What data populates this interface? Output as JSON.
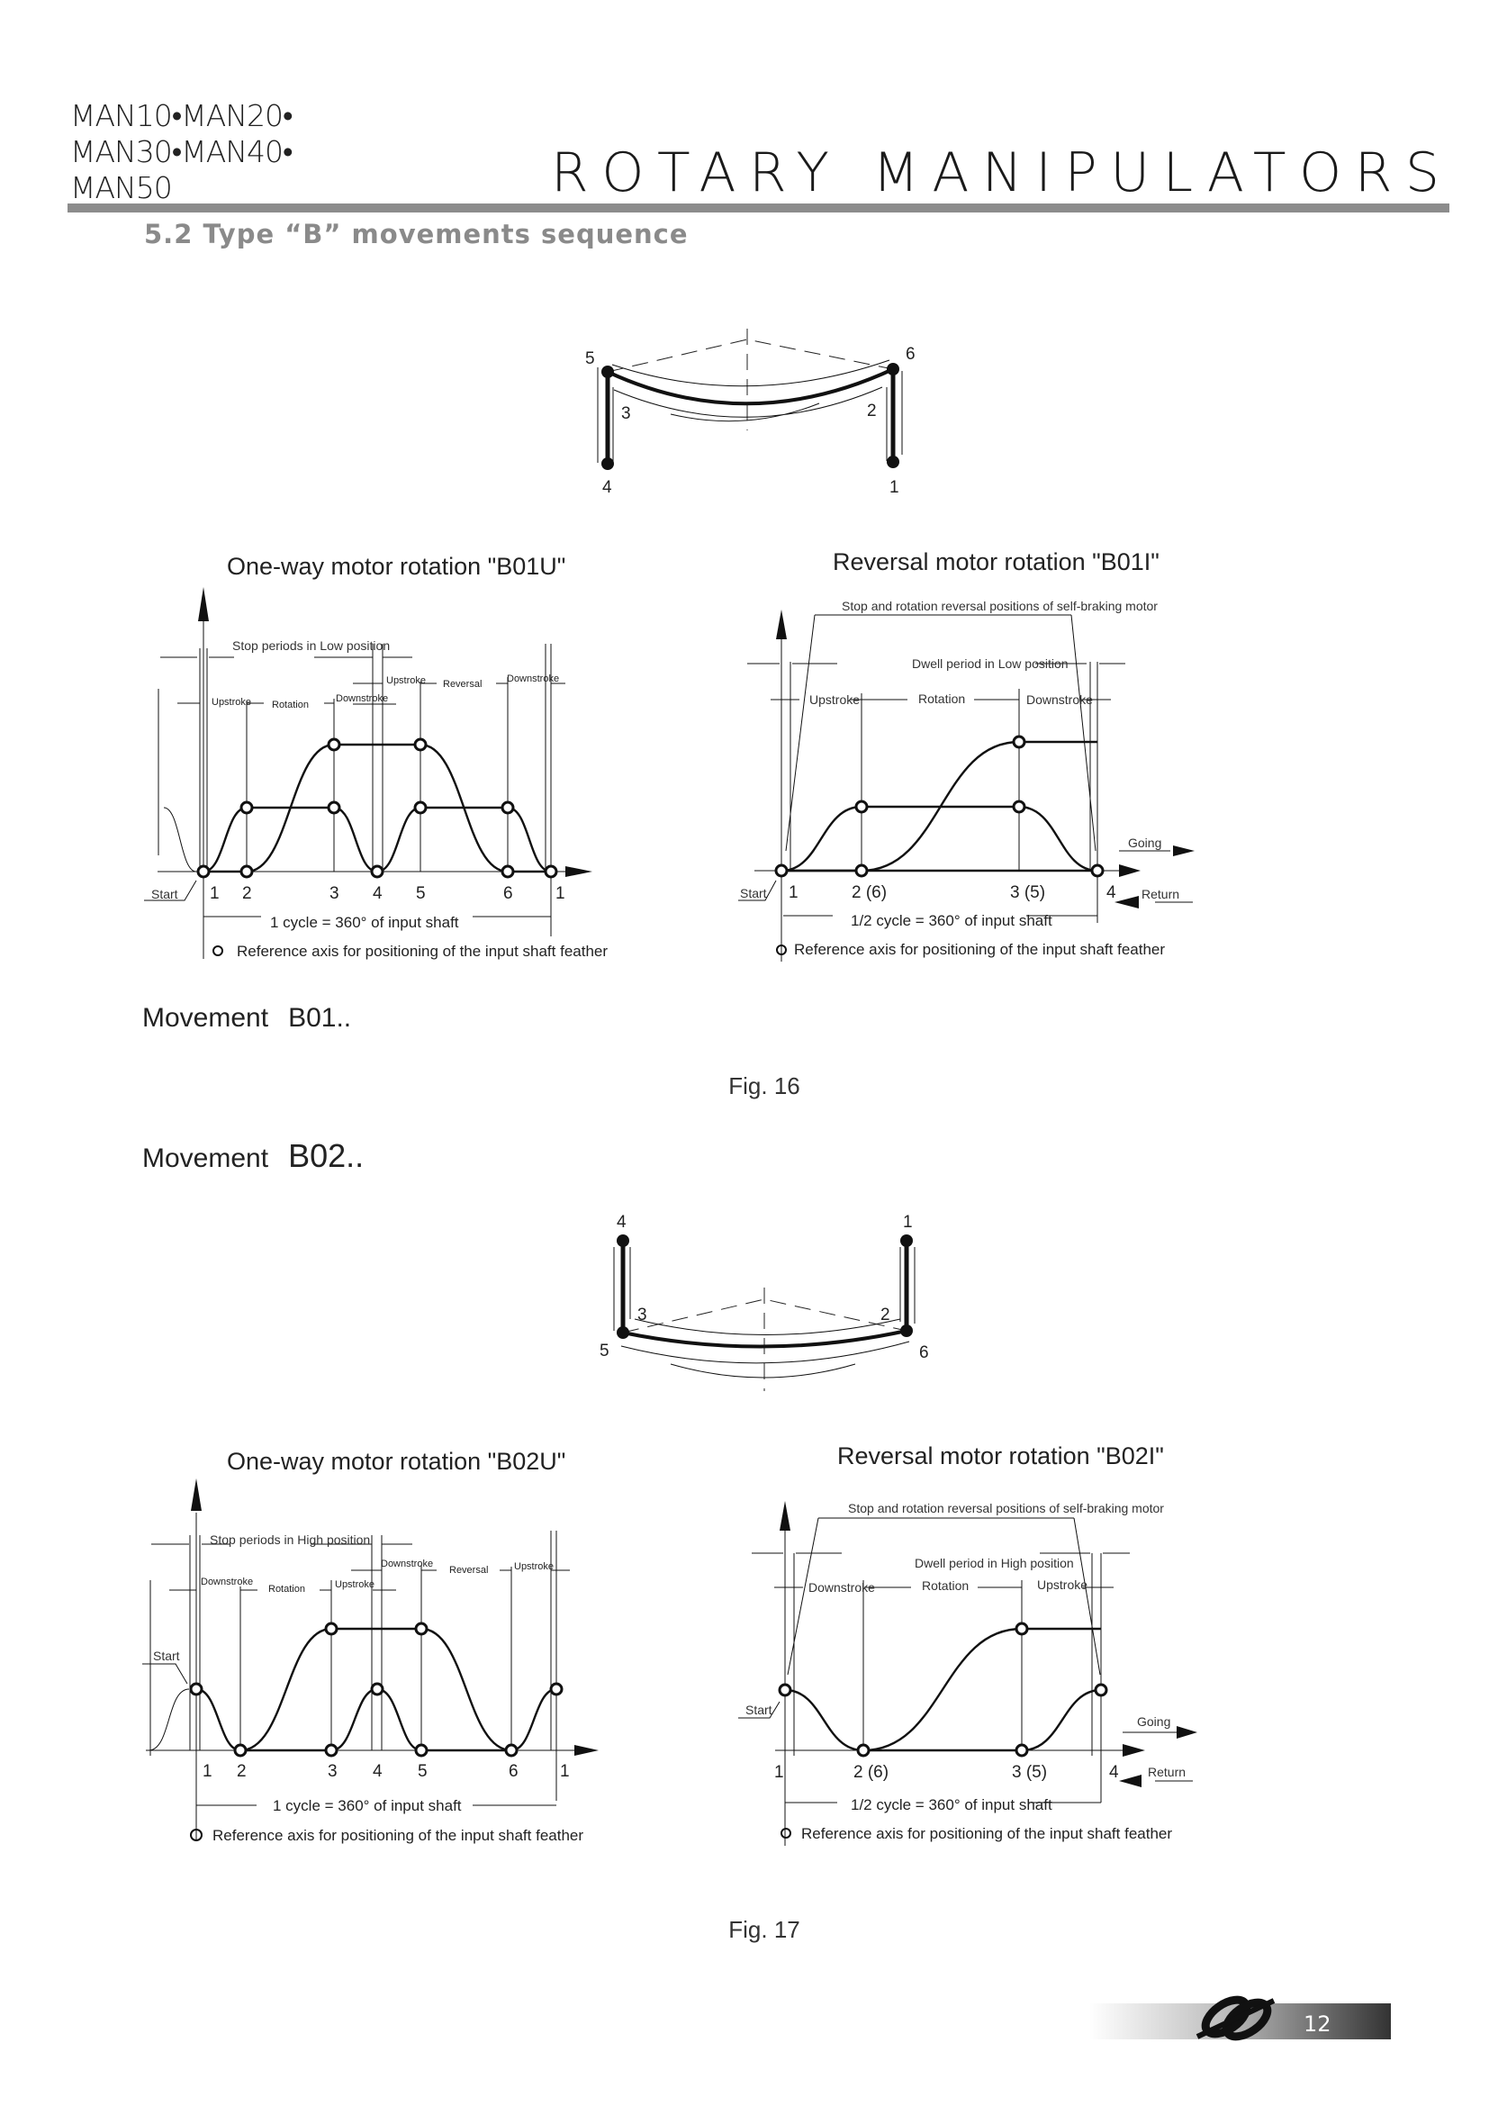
{
  "header": {
    "models_line1": "MAN10•MAN20•",
    "models_line2": "MAN30•MAN40•",
    "models_line3": "MAN50",
    "title": "ROTARY MANIPULATORS",
    "section": "5.2  Type “B” movements sequence",
    "bar_color": "#8c8c8c"
  },
  "diagram1": {
    "labels": [
      "5",
      "6",
      "3",
      "2",
      "4",
      "1"
    ]
  },
  "b01u": {
    "title": "One-way motor rotation  \"B01U\"",
    "stop": "Stop periods in Low position",
    "phases": [
      "Upstroke",
      "Rotation",
      "Downstroke",
      "Upstroke",
      "Reversal",
      "Downstroke"
    ],
    "points": [
      "1",
      "2",
      "3",
      "4",
      "5",
      "6",
      "1"
    ],
    "start": "Start",
    "cycle": "1 cycle = 360° of input shaft",
    "reference": "Reference axis for positioning of the input shaft feather"
  },
  "b01i": {
    "title": "Reversal motor rotation  \"B01I\"",
    "stop": "Stop and rotation reversal positions of self-braking motor",
    "dwell": "Dwell period in Low position",
    "phases": [
      "Upstroke",
      "Rotation",
      "Downstroke"
    ],
    "points": [
      "1",
      "2 (6)",
      "3 (5)",
      "4"
    ],
    "start": "Start",
    "going": "Going",
    "return": "Return",
    "cycle": "1/2 cycle = 360° of input shaft",
    "reference": "Reference axis for positioning of the input shaft feather"
  },
  "movement1": {
    "label": "Movement",
    "code": "B01.."
  },
  "fig1": "Fig. 16",
  "movement2": {
    "label": "Movement",
    "code": "B02.."
  },
  "diagram2": {
    "labels": [
      "4",
      "1",
      "3",
      "2",
      "5",
      "6"
    ]
  },
  "b02u": {
    "title": "One-way motor rotation  \"B02U\"",
    "stop": "Stop periods in High position",
    "phases": [
      "Downstroke",
      "Rotation",
      "Upstroke",
      "Downstroke",
      "Reversal",
      "Upstroke"
    ],
    "points": [
      "1",
      "2",
      "3",
      "4",
      "5",
      "6",
      "1"
    ],
    "start": "Start",
    "cycle": "1 cycle = 360° of input shaft",
    "reference": "Reference axis for positioning of the input shaft feather"
  },
  "b02i": {
    "title": "Reversal motor rotation  \"B02I\"",
    "stop": "Stop and rotation reversal positions of self-braking motor",
    "dwell": "Dwell period in High position",
    "phases": [
      "Downstroke",
      "Rotation",
      "Upstroke"
    ],
    "points": [
      "1",
      "2  (6)",
      "3  (5)",
      "4"
    ],
    "start": "Start",
    "going": "Going",
    "return": "Return",
    "cycle": "1/2 cycle = 360° of input shaft",
    "reference": "Reference axis for positioning of the input shaft feather"
  },
  "fig2": "Fig. 17",
  "footer": {
    "page_number": "12",
    "logo_icon": "company-logo-icon"
  }
}
